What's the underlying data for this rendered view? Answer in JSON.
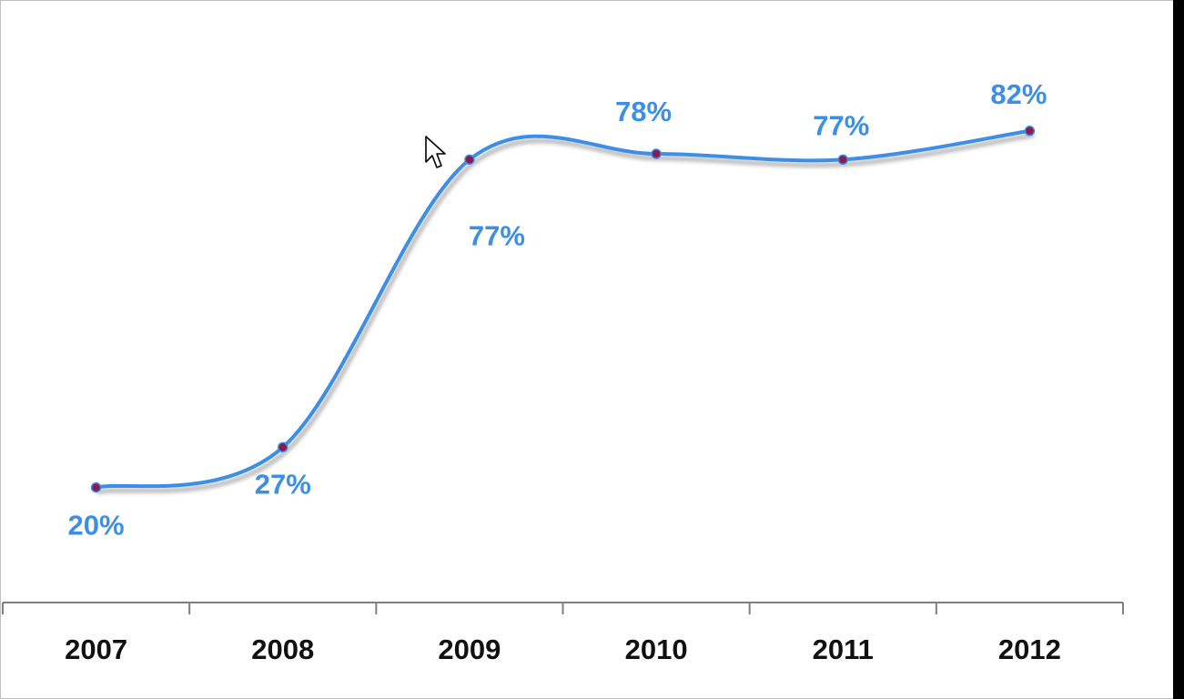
{
  "chart_data": {
    "type": "line",
    "categories": [
      "2007",
      "2008",
      "2009",
      "2010",
      "2011",
      "2012"
    ],
    "series": [
      {
        "values": [
          20,
          27,
          77,
          78,
          77,
          82
        ]
      }
    ],
    "data_labels": [
      "20%",
      "27%",
      "77%",
      "78%",
      "77%",
      "82%"
    ],
    "smooth": true,
    "ylim": [
      0,
      100
    ],
    "grid": false,
    "legend": "none",
    "colors": {
      "line": "#3d8fe6",
      "marker": "#8b1a52",
      "label": "#3d8fe6",
      "axis": "#7f7f7f"
    }
  },
  "cursor": {
    "icon": "arrow-cursor-icon"
  }
}
